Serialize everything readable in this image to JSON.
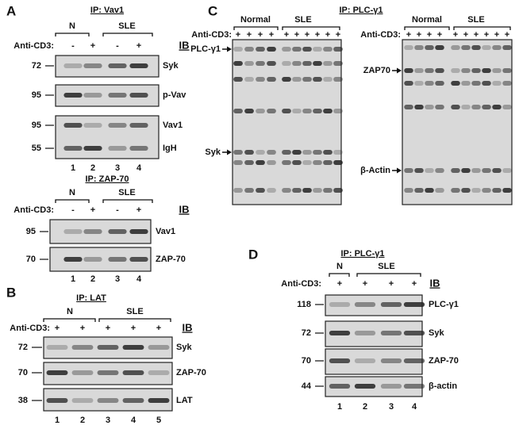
{
  "panel_a": {
    "label": "A",
    "ip_vav1": {
      "ip": "IP: Vav1",
      "groups": [
        "N",
        "SLE"
      ],
      "treatment_label": "Anti-CD3:",
      "treatments": [
        "-",
        "+",
        "-",
        "+"
      ],
      "ib": "IB",
      "blots": [
        {
          "mw": 72,
          "protein": "Syk"
        },
        {
          "mw": 95,
          "protein": "p-Vav"
        },
        {
          "mw": 95,
          "protein": "Vav1"
        },
        {
          "mw": 55,
          "protein": "IgH"
        }
      ],
      "lanes": [
        "1",
        "2",
        "3",
        "4"
      ]
    },
    "ip_zap70": {
      "ip": "IP: ZAP-70",
      "groups": [
        "N",
        "SLE"
      ],
      "treatment_label": "Anti-CD3:",
      "treatments": [
        "-",
        "+",
        "-",
        "+"
      ],
      "ib": "IB",
      "blots": [
        {
          "mw": 95,
          "protein": "Vav1"
        },
        {
          "mw": 70,
          "protein": "ZAP-70"
        }
      ],
      "lanes": [
        "1",
        "2",
        "3",
        "4"
      ]
    }
  },
  "panel_b": {
    "label": "B",
    "ip": "IP: LAT",
    "groups": [
      "N",
      "SLE"
    ],
    "treatment_label": "Anti-CD3:",
    "treatments": [
      "+",
      "+",
      "+",
      "+",
      "+"
    ],
    "ib": "IB",
    "blots": [
      {
        "mw": 72,
        "protein": "Syk"
      },
      {
        "mw": 70,
        "protein": "ZAP-70"
      },
      {
        "mw": 38,
        "protein": "LAT"
      }
    ],
    "lanes": [
      "1",
      "2",
      "3",
      "4",
      "5"
    ]
  },
  "panel_c": {
    "label": "C",
    "ip": "IP: PLC-γ1",
    "left": {
      "groups": [
        "Normal",
        "SLE"
      ],
      "treatment_label": "Anti-CD3:",
      "treatments": [
        "+",
        "+",
        "+",
        "+",
        "+",
        "+",
        "+",
        "+",
        "+",
        "+"
      ],
      "markers": [
        "PLC-γ1",
        "Syk"
      ]
    },
    "right": {
      "groups": [
        "Normal",
        "SLE"
      ],
      "treatment_label": "Anti-CD3:",
      "treatments": [
        "+",
        "+",
        "+",
        "+",
        "+",
        "+",
        "+",
        "+",
        "+",
        "+"
      ],
      "markers": [
        "ZAP70",
        "β-Actin"
      ]
    }
  },
  "panel_d": {
    "label": "D",
    "ip": "IP: PLC-γ1",
    "groups": [
      "N",
      "SLE"
    ],
    "treatment_label": "Anti-CD3:",
    "treatments": [
      "+",
      "+",
      "+",
      "+"
    ],
    "ib": "IB",
    "blots": [
      {
        "mw": 118,
        "protein": "PLC-γ1"
      },
      {
        "mw": 72,
        "protein": "Syk"
      },
      {
        "mw": 70,
        "protein": "ZAP-70"
      },
      {
        "mw": 44,
        "protein": "β-actin"
      }
    ],
    "lanes": [
      "1",
      "2",
      "3",
      "4"
    ]
  }
}
